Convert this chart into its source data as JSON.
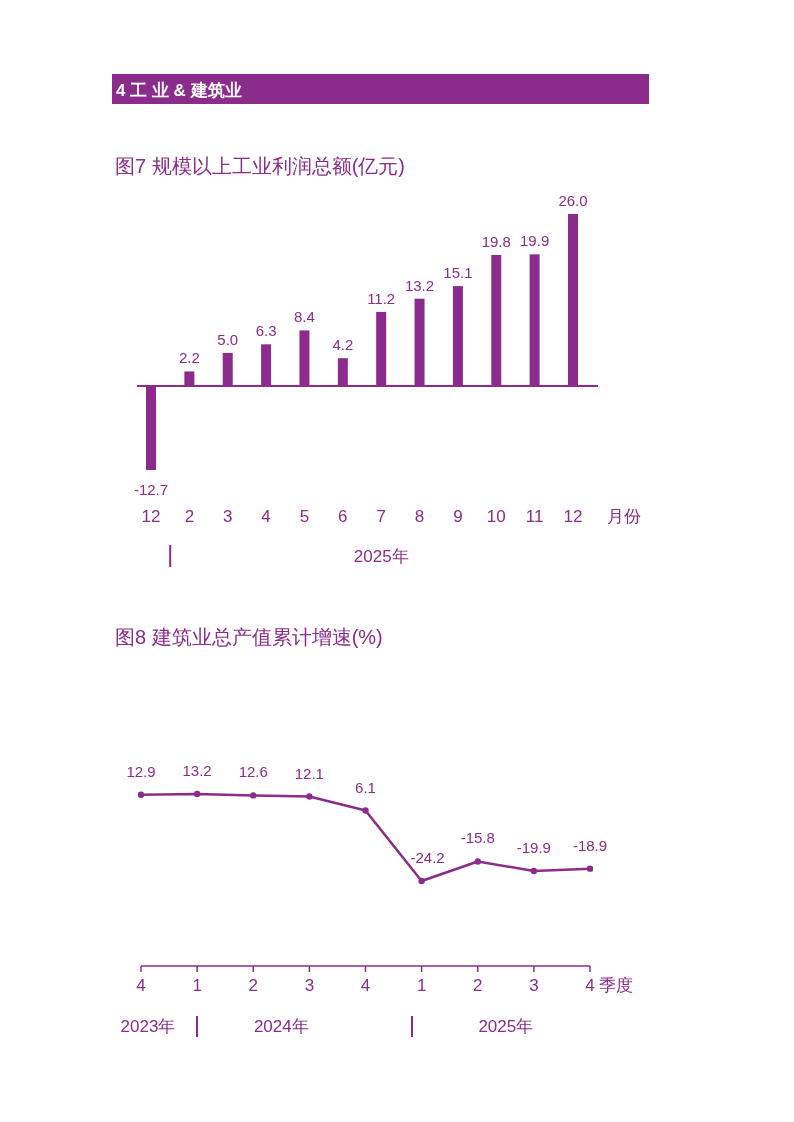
{
  "chart_data": [
    {
      "type": "bar",
      "title": "图7  规模以上工业利润总额(亿元)",
      "xlabel": "月份",
      "annotations": [
        "4  工  业 & 建筑业",
        "2025年"
      ],
      "categories": [
        "12",
        "2",
        "3",
        "4",
        "5",
        "6",
        "7",
        "8",
        "9",
        "10",
        "11",
        "12"
      ],
      "color": "#8b2b8b",
      "values": [
        -12.7,
        2.2,
        5.0,
        6.3,
        8.4,
        4.2,
        11.2,
        13.2,
        15.1,
        19.8,
        19.9,
        26.0
      ],
      "value_labels": [
        "-12.7",
        "2.2",
        "5.0",
        "6.3",
        "8.4",
        "4.2",
        "11.2",
        "13.2",
        "15.1",
        "19.8",
        "19.9",
        "26.0"
      ],
      "ref_lines": [
        {
          "axis": "y",
          "value": 0
        }
      ]
    },
    {
      "type": "line",
      "title": "图8  建筑业总产值累计增速(%)",
      "xlabel": "季度",
      "annotations": [
        "2023年",
        "2024年",
        "2025年"
      ],
      "categories": [
        "4",
        "1",
        "2",
        "3",
        "4",
        "1",
        "2",
        "3",
        "4"
      ],
      "color": "#8b2b8b",
      "marker": "circle",
      "values": [
        12.9,
        13.2,
        12.6,
        12.1,
        6.1,
        -24.2,
        -15.8,
        -19.9,
        -18.9
      ],
      "value_labels": [
        "12.9",
        "13.2",
        "12.6",
        "12.1",
        "6.1",
        "-24.2",
        "-15.8",
        "-19.9",
        "-18.9"
      ]
    }
  ]
}
